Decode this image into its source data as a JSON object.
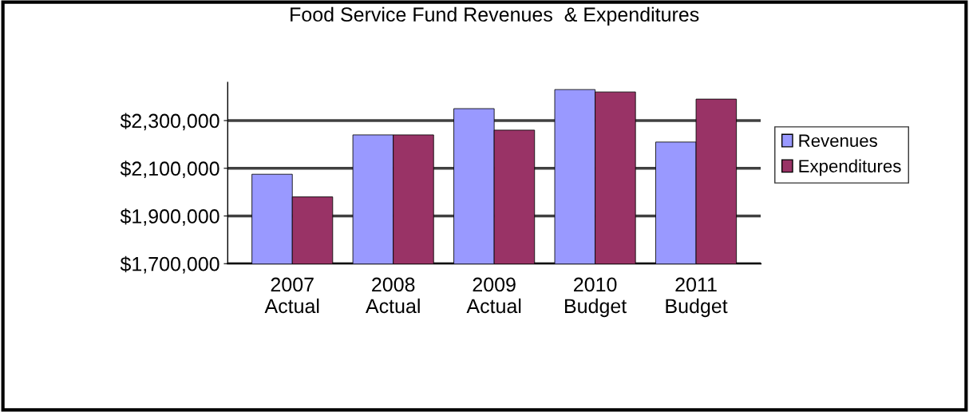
{
  "chart_data": {
    "type": "bar",
    "title": "Food Service Fund Revenues  & Expenditures",
    "categories": [
      "2007\nActual",
      "2008\nActual",
      "2009\nActual",
      "2010\nBudget",
      "2011\nBudget"
    ],
    "series": [
      {
        "name": "Revenues",
        "color": "#9999ff",
        "values": [
          2075000,
          2240000,
          2350000,
          2430000,
          2210000
        ]
      },
      {
        "name": "Expenditures",
        "color": "#993366",
        "values": [
          1980000,
          2240000,
          2260000,
          2420000,
          2390000
        ]
      }
    ],
    "ylim": [
      1700000,
      2460000
    ],
    "yticks": [
      {
        "value": 1700000,
        "label": "$1,700,000"
      },
      {
        "value": 1900000,
        "label": "$1,900,000"
      },
      {
        "value": 2100000,
        "label": "$2,100,000"
      },
      {
        "value": 2300000,
        "label": "$2,300,000"
      }
    ],
    "grid": "y",
    "legend": "right"
  }
}
